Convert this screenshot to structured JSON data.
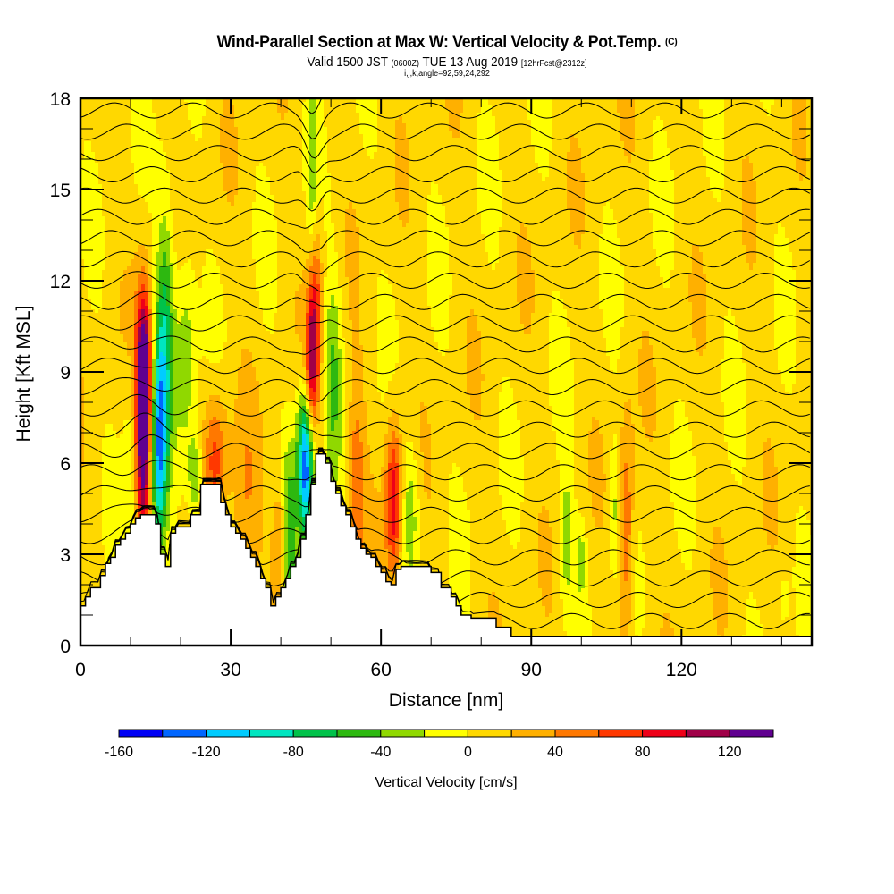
{
  "chart_data": {
    "type": "heatmap",
    "title": "Wind-Parallel Section at Max W: Vertical Velocity & Pot.Temp.",
    "title_mark": "(C)",
    "subtitle": {
      "valid_prefix": "Valid 1500 JST",
      "utc": "(0600Z)",
      "date": "TUE 13 Aug 2019",
      "forecast": "[12hrFcst@2312z]"
    },
    "grid_info": "i,j,k,angle=92,59,24,292",
    "xlabel": "Distance [nm]",
    "ylabel": "Height [Kft MSL]",
    "xlim": [
      0,
      146
    ],
    "ylim": [
      0,
      18
    ],
    "x_ticks": [
      "0",
      "30",
      "60",
      "90",
      "120"
    ],
    "x_tick_values": [
      0,
      30,
      60,
      90,
      120
    ],
    "y_ticks": [
      "0",
      "3",
      "6",
      "9",
      "12",
      "15",
      "18"
    ],
    "y_tick_values": [
      0,
      3,
      6,
      9,
      12,
      15,
      18
    ],
    "colorbar": {
      "label": "Vertical Velocity [cm/s]",
      "min": -160,
      "max": 140,
      "step": 20,
      "tick_labels": [
        "-160",
        "-120",
        "-80",
        "-40",
        "0",
        "40",
        "80",
        "120"
      ],
      "tick_values": [
        -160,
        -120,
        -80,
        -40,
        0,
        40,
        80,
        120
      ],
      "colors": [
        "#0000f5",
        "#0066ff",
        "#00ccff",
        "#00e5c0",
        "#00c24a",
        "#2db810",
        "#90d800",
        "#ffff00",
        "#ffd800",
        "#ffb000",
        "#ff7800",
        "#ff3800",
        "#ee0018",
        "#a00048",
        "#600090"
      ]
    },
    "terrain_kft": {
      "distance_nm": [
        0,
        1,
        2,
        4,
        5,
        6,
        7,
        8,
        9,
        10,
        11,
        12,
        13,
        14,
        15,
        16,
        17,
        18,
        19,
        20,
        21,
        22,
        24,
        27,
        28,
        29,
        30,
        31,
        32,
        33,
        34,
        35,
        36,
        37,
        38,
        39,
        40,
        41,
        42,
        43,
        44,
        45,
        46,
        47,
        48,
        49,
        50,
        51,
        52,
        53,
        54,
        55,
        56,
        57,
        58,
        59,
        60,
        61,
        62,
        63,
        64,
        65,
        66,
        67,
        70,
        72,
        74,
        75,
        76,
        78,
        79,
        80,
        83,
        86,
        88,
        90,
        92,
        93,
        100,
        110,
        120,
        130,
        140,
        146
      ],
      "height_kft": [
        1.3,
        1.6,
        1.9,
        2.3,
        2.7,
        2.9,
        3.3,
        3.5,
        3.7,
        4.0,
        4.2,
        4.3,
        4.3,
        4.3,
        4.0,
        3.0,
        2.6,
        3.7,
        3.9,
        3.9,
        3.9,
        4.3,
        5.3,
        5.3,
        4.7,
        4.3,
        3.9,
        3.7,
        3.5,
        3.2,
        2.9,
        2.6,
        2.2,
        1.9,
        1.3,
        1.6,
        1.9,
        2.2,
        2.6,
        2.9,
        3.5,
        4.3,
        5.3,
        6.3,
        6.3,
        6.0,
        5.4,
        5.0,
        4.6,
        4.3,
        3.9,
        3.5,
        3.2,
        3.0,
        2.9,
        2.6,
        2.4,
        2.1,
        2.0,
        2.5,
        2.6,
        2.6,
        2.6,
        2.6,
        2.4,
        1.9,
        1.6,
        1.3,
        1.0,
        0.9,
        0.9,
        0.9,
        0.6,
        0.3,
        0.3,
        0.3,
        0.3,
        0.3,
        0.3,
        0.3,
        0.3,
        0.3,
        0.3,
        0.3
      ]
    },
    "velocity_features": [
      {
        "x_nm": 12.5,
        "y_kft": 7.0,
        "sx": 1.3,
        "sy": 2.8,
        "w": 140
      },
      {
        "x_nm": 12.8,
        "y_kft": 9.0,
        "sx": 1.0,
        "sy": 1.8,
        "w": 80
      },
      {
        "x_nm": 15.5,
        "y_kft": 6.5,
        "sx": 1.2,
        "sy": 2.5,
        "w": -120
      },
      {
        "x_nm": 17,
        "y_kft": 10.5,
        "sx": 1.3,
        "sy": 3.0,
        "w": -70
      },
      {
        "x_nm": 10.5,
        "y_kft": 6,
        "sx": 1.2,
        "sy": 2.5,
        "w": -40
      },
      {
        "x_nm": 21,
        "y_kft": 9.5,
        "sx": 1.4,
        "sy": 2.5,
        "w": -45
      },
      {
        "x_nm": 23,
        "y_kft": 5.5,
        "sx": 1.0,
        "sy": 1.0,
        "w": -60
      },
      {
        "x_nm": 27,
        "y_kft": 6.2,
        "sx": 1.6,
        "sy": 1.5,
        "w": 60
      },
      {
        "x_nm": 33,
        "y_kft": 4.0,
        "sx": 2.0,
        "sy": 3.0,
        "w": 25
      },
      {
        "x_nm": 40,
        "y_kft": 3.0,
        "sx": 1.2,
        "sy": 1.8,
        "w": 55
      },
      {
        "x_nm": 41.5,
        "y_kft": 3.0,
        "sx": 1.0,
        "sy": 2.5,
        "w": -70
      },
      {
        "x_nm": 45,
        "y_kft": 6.0,
        "sx": 1.2,
        "sy": 1.8,
        "w": -150
      },
      {
        "x_nm": 46.8,
        "y_kft": 11.5,
        "sx": 0.9,
        "sy": 2.5,
        "w": 90
      },
      {
        "x_nm": 46,
        "y_kft": 9.0,
        "sx": 0.9,
        "sy": 1.6,
        "w": 80
      },
      {
        "x_nm": 46.5,
        "y_kft": 14.5,
        "sx": 0.8,
        "sy": 2.5,
        "w": -60
      },
      {
        "x_nm": 50.5,
        "y_kft": 9.0,
        "sx": 1.2,
        "sy": 2.5,
        "w": -45
      },
      {
        "x_nm": 55,
        "y_kft": 5.0,
        "sx": 1.2,
        "sy": 2.5,
        "w": 50
      },
      {
        "x_nm": 62.5,
        "y_kft": 4.8,
        "sx": 1.1,
        "sy": 1.8,
        "w": 90
      },
      {
        "x_nm": 66,
        "y_kft": 4.5,
        "sx": 1.2,
        "sy": 1.6,
        "w": -40
      },
      {
        "x_nm": 97,
        "y_kft": 3.5,
        "sx": 1.0,
        "sy": 1.6,
        "w": -40
      },
      {
        "x_nm": 109,
        "y_kft": 3.8,
        "sx": 1.0,
        "sy": 2.6,
        "w": 55
      },
      {
        "x_nm": 106.5,
        "y_kft": 4.5,
        "sx": 0.7,
        "sy": 1.5,
        "w": -35
      },
      {
        "x_nm": 100,
        "y_kft": 2.8,
        "sx": 0.8,
        "sy": 0.9,
        "w": -35
      },
      {
        "x_nm": 140.5,
        "y_kft": 1.5,
        "sx": 0.5,
        "sy": 0.5,
        "w": -30
      }
    ],
    "theta_contour_count": 26
  }
}
